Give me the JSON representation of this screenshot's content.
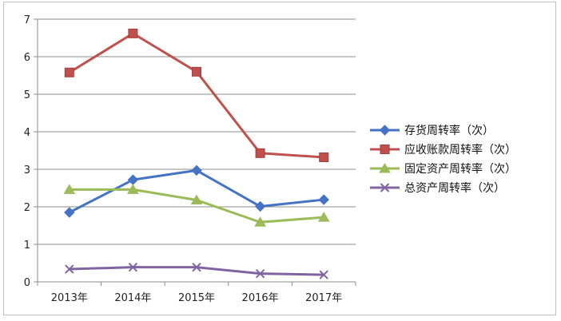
{
  "chart_data": {
    "type": "line",
    "title": "",
    "xlabel": "",
    "ylabel": "",
    "categories": [
      "2013年",
      "2014年",
      "2015年",
      "2016年",
      "2017年"
    ],
    "ylim": [
      0,
      7
    ],
    "yticks": [
      0,
      1,
      2,
      3,
      4,
      5,
      6,
      7
    ],
    "grid": true,
    "legend_position": "right",
    "series": [
      {
        "name": "存货周转率（次）",
        "values": [
          1.85,
          2.72,
          2.97,
          2.01,
          2.19
        ],
        "color": "#4472c4",
        "marker": "diamond"
      },
      {
        "name": "应收账款周转率（次）",
        "values": [
          5.58,
          6.62,
          5.6,
          3.43,
          3.32
        ],
        "color": "#c0504d",
        "marker": "square"
      },
      {
        "name": "固定资产周转率（次）",
        "values": [
          2.46,
          2.46,
          2.18,
          1.59,
          1.72
        ],
        "color": "#9bbb59",
        "marker": "triangle"
      },
      {
        "name": "总资产周转率（次）",
        "values": [
          0.34,
          0.39,
          0.39,
          0.22,
          0.19
        ],
        "color": "#8064a2",
        "marker": "x"
      }
    ]
  }
}
